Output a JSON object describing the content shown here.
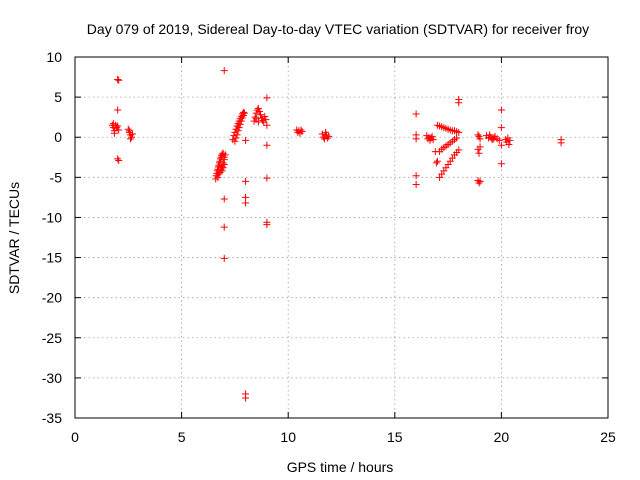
{
  "chart_data": {
    "type": "scatter",
    "title": "Day 079 of 2019, Sidereal Day-to-day VTEC variation (SDTVAR) for receiver froy",
    "xlabel": "GPS time / hours",
    "ylabel": "SDTVAR / TECUs",
    "xlim": [
      0,
      25
    ],
    "ylim": [
      -35,
      10
    ],
    "xticks": [
      0,
      5,
      10,
      15,
      20,
      25
    ],
    "yticks": [
      10,
      5,
      0,
      -5,
      -10,
      -15,
      -20,
      -25,
      -30,
      -35
    ],
    "xtick_labels": [
      "0",
      "5",
      "10",
      "15",
      "20",
      "25"
    ],
    "ytick_labels": [
      "10",
      "5",
      "0",
      "-5",
      "-10",
      "-15",
      "-20",
      "-25",
      "-30",
      "-35"
    ],
    "grid": true,
    "marker": "plus",
    "color": "#ff0000",
    "series": [
      {
        "name": "SDTVAR",
        "points": [
          [
            1.75,
            1.5
          ],
          [
            1.8,
            1.2
          ],
          [
            1.85,
            0.8
          ],
          [
            1.85,
            0.5
          ],
          [
            1.9,
            1.5
          ],
          [
            1.95,
            1.2
          ],
          [
            2.0,
            1.4
          ],
          [
            2.05,
            0.9
          ],
          [
            1.8,
            1.7
          ],
          [
            2.0,
            7.2
          ],
          [
            2.05,
            7.1
          ],
          [
            2.0,
            3.4
          ],
          [
            2.0,
            -2.7
          ],
          [
            2.05,
            -2.9
          ],
          [
            2.5,
            1.0
          ],
          [
            2.55,
            0.6
          ],
          [
            2.6,
            0.3
          ],
          [
            2.65,
            0.0
          ],
          [
            2.7,
            0.4
          ],
          [
            2.6,
            -0.2
          ],
          [
            2.55,
            0.8
          ],
          [
            6.6,
            -5.2
          ],
          [
            6.62,
            -4.8
          ],
          [
            6.65,
            -4.5
          ],
          [
            6.68,
            -4.2
          ],
          [
            6.7,
            -4.0
          ],
          [
            6.72,
            -3.7
          ],
          [
            6.75,
            -3.5
          ],
          [
            6.78,
            -3.2
          ],
          [
            6.8,
            -3.0
          ],
          [
            6.82,
            -2.7
          ],
          [
            6.85,
            -2.5
          ],
          [
            6.88,
            -2.3
          ],
          [
            6.9,
            -2.1
          ],
          [
            6.95,
            -2.0
          ],
          [
            6.7,
            -5.0
          ],
          [
            6.75,
            -4.6
          ],
          [
            6.8,
            -4.4
          ],
          [
            6.85,
            -4.0
          ],
          [
            6.9,
            -3.6
          ],
          [
            6.95,
            -3.2
          ],
          [
            7.0,
            -2.8
          ],
          [
            7.0,
            -2.5
          ],
          [
            7.05,
            -2.2
          ],
          [
            6.9,
            -4.2
          ],
          [
            6.95,
            -3.8
          ],
          [
            7.0,
            -3.4
          ],
          [
            7.0,
            8.3
          ],
          [
            7.0,
            -7.7
          ],
          [
            7.0,
            -11.2
          ],
          [
            7.0,
            -15.1
          ],
          [
            7.4,
            -0.3
          ],
          [
            7.45,
            0.2
          ],
          [
            7.5,
            0.6
          ],
          [
            7.55,
            1.0
          ],
          [
            7.6,
            1.4
          ],
          [
            7.65,
            1.7
          ],
          [
            7.7,
            2.0
          ],
          [
            7.75,
            2.3
          ],
          [
            7.8,
            2.6
          ],
          [
            7.85,
            2.9
          ],
          [
            7.9,
            3.1
          ],
          [
            7.5,
            -0.5
          ],
          [
            7.55,
            -0.1
          ],
          [
            7.6,
            0.3
          ],
          [
            7.65,
            0.8
          ],
          [
            7.7,
            1.2
          ],
          [
            7.75,
            1.6
          ],
          [
            7.8,
            2.0
          ],
          [
            7.85,
            2.4
          ],
          [
            7.9,
            2.7
          ],
          [
            7.95,
            3.0
          ],
          [
            8.0,
            -0.4
          ],
          [
            8.0,
            -5.5
          ],
          [
            8.0,
            -7.5
          ],
          [
            8.0,
            -8.2
          ],
          [
            8.0,
            -32.0
          ],
          [
            8.0,
            -32.5
          ],
          [
            8.4,
            2.0
          ],
          [
            8.45,
            2.5
          ],
          [
            8.5,
            3.0
          ],
          [
            8.55,
            3.4
          ],
          [
            8.6,
            3.6
          ],
          [
            8.65,
            3.2
          ],
          [
            8.7,
            2.8
          ],
          [
            8.75,
            2.4
          ],
          [
            8.8,
            2.1
          ],
          [
            8.85,
            1.9
          ],
          [
            8.9,
            2.6
          ],
          [
            8.95,
            2.2
          ],
          [
            8.5,
            2.3
          ],
          [
            8.6,
            1.9
          ],
          [
            9.0,
            4.9
          ],
          [
            9.0,
            1.5
          ],
          [
            9.0,
            -1.0
          ],
          [
            9.0,
            -5.1
          ],
          [
            9.0,
            -10.6
          ],
          [
            9.0,
            -10.9
          ],
          [
            10.4,
            0.9
          ],
          [
            10.45,
            0.6
          ],
          [
            10.5,
            0.8
          ],
          [
            10.55,
            0.5
          ],
          [
            10.6,
            0.9
          ],
          [
            10.65,
            0.7
          ],
          [
            11.6,
            0.4
          ],
          [
            11.65,
            0.0
          ],
          [
            11.7,
            -0.2
          ],
          [
            11.75,
            0.6
          ],
          [
            11.8,
            0.3
          ],
          [
            11.85,
            -0.1
          ],
          [
            11.9,
            0.1
          ],
          [
            16.0,
            2.9
          ],
          [
            16.0,
            0.3
          ],
          [
            16.0,
            -0.2
          ],
          [
            16.0,
            -4.8
          ],
          [
            16.0,
            -5.9
          ],
          [
            16.5,
            0.2
          ],
          [
            16.55,
            -0.2
          ],
          [
            16.6,
            0.0
          ],
          [
            16.65,
            -0.4
          ],
          [
            16.7,
            -0.1
          ],
          [
            16.75,
            0.1
          ],
          [
            16.8,
            -0.3
          ],
          [
            16.9,
            -1.8
          ],
          [
            16.95,
            -3.2
          ],
          [
            17.0,
            -3.0
          ],
          [
            17.0,
            1.5
          ],
          [
            17.1,
            1.4
          ],
          [
            17.2,
            1.3
          ],
          [
            17.3,
            1.2
          ],
          [
            17.4,
            1.1
          ],
          [
            17.5,
            1.0
          ],
          [
            17.6,
            0.9
          ],
          [
            17.7,
            0.8
          ],
          [
            17.8,
            0.8
          ],
          [
            17.9,
            0.7
          ],
          [
            18.0,
            0.6
          ],
          [
            17.1,
            -1.8
          ],
          [
            17.2,
            -1.5
          ],
          [
            17.3,
            -1.3
          ],
          [
            17.4,
            -1.1
          ],
          [
            17.5,
            -0.9
          ],
          [
            17.6,
            -0.7
          ],
          [
            17.7,
            -0.5
          ],
          [
            17.8,
            -0.3
          ],
          [
            17.9,
            -0.1
          ],
          [
            17.1,
            -5.0
          ],
          [
            17.2,
            -4.6
          ],
          [
            17.3,
            -4.2
          ],
          [
            17.4,
            -3.8
          ],
          [
            17.5,
            -3.4
          ],
          [
            17.6,
            -3.0
          ],
          [
            17.7,
            -2.6
          ],
          [
            17.8,
            -2.2
          ],
          [
            17.9,
            -1.9
          ],
          [
            18.0,
            -1.6
          ],
          [
            18.0,
            4.7
          ],
          [
            18.0,
            4.3
          ],
          [
            18.9,
            0.3
          ],
          [
            18.95,
            0.1
          ],
          [
            19.0,
            -0.2
          ],
          [
            18.9,
            -1.5
          ],
          [
            18.95,
            -2.0
          ],
          [
            19.0,
            -1.2
          ],
          [
            18.9,
            -5.4
          ],
          [
            18.95,
            -5.7
          ],
          [
            19.0,
            -5.5
          ],
          [
            19.3,
            0.2
          ],
          [
            19.4,
            -0.1
          ],
          [
            19.5,
            0.0
          ],
          [
            19.6,
            -0.3
          ],
          [
            19.7,
            0.1
          ],
          [
            19.8,
            -0.2
          ],
          [
            19.9,
            -0.4
          ],
          [
            19.45,
            0.3
          ],
          [
            19.55,
            -0.2
          ],
          [
            19.65,
            -0.1
          ],
          [
            20.0,
            3.4
          ],
          [
            20.0,
            1.2
          ],
          [
            20.0,
            -1.0
          ],
          [
            20.0,
            -3.3
          ],
          [
            20.2,
            -0.3
          ],
          [
            20.25,
            -0.6
          ],
          [
            20.3,
            -0.1
          ],
          [
            20.35,
            -0.9
          ],
          [
            20.4,
            -0.4
          ],
          [
            22.8,
            -0.3
          ],
          [
            22.8,
            -0.7
          ]
        ]
      }
    ]
  }
}
